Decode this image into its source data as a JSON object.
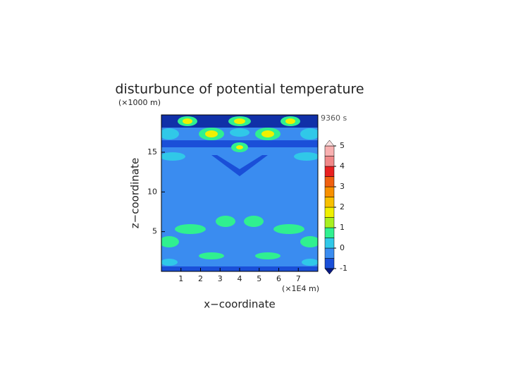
{
  "chart_data": {
    "type": "contour",
    "title": "disturbunce of potential temperature",
    "time_label": "9360 s",
    "x_label": "x−coordinate",
    "y_label": "z−coordinate",
    "x_unit": "(×1E4 m)",
    "y_unit": "(×1000 m)",
    "xlim": [
      0,
      8
    ],
    "xticks": [
      1,
      2,
      3,
      4,
      5,
      6,
      7
    ],
    "ylim": [
      0,
      19.7
    ],
    "yticks": [
      5,
      10,
      15
    ],
    "colorbar": {
      "levels": [
        -1,
        -0.5,
        0,
        0.5,
        1,
        1.5,
        2,
        2.5,
        3,
        3.5,
        4,
        4.5,
        5
      ],
      "colors": [
        "#1a4fd8",
        "#3a8cf0",
        "#30c8e8",
        "#30f090",
        "#a8f020",
        "#f0f000",
        "#f8c000",
        "#f89000",
        "#f06010",
        "#e82020",
        "#f08888",
        "#f8b0b0"
      ],
      "under_color": "#0a1a80",
      "over_color": "#fbe0e0",
      "ticks": [
        -1,
        0,
        1,
        2,
        3,
        4,
        5
      ]
    }
  }
}
